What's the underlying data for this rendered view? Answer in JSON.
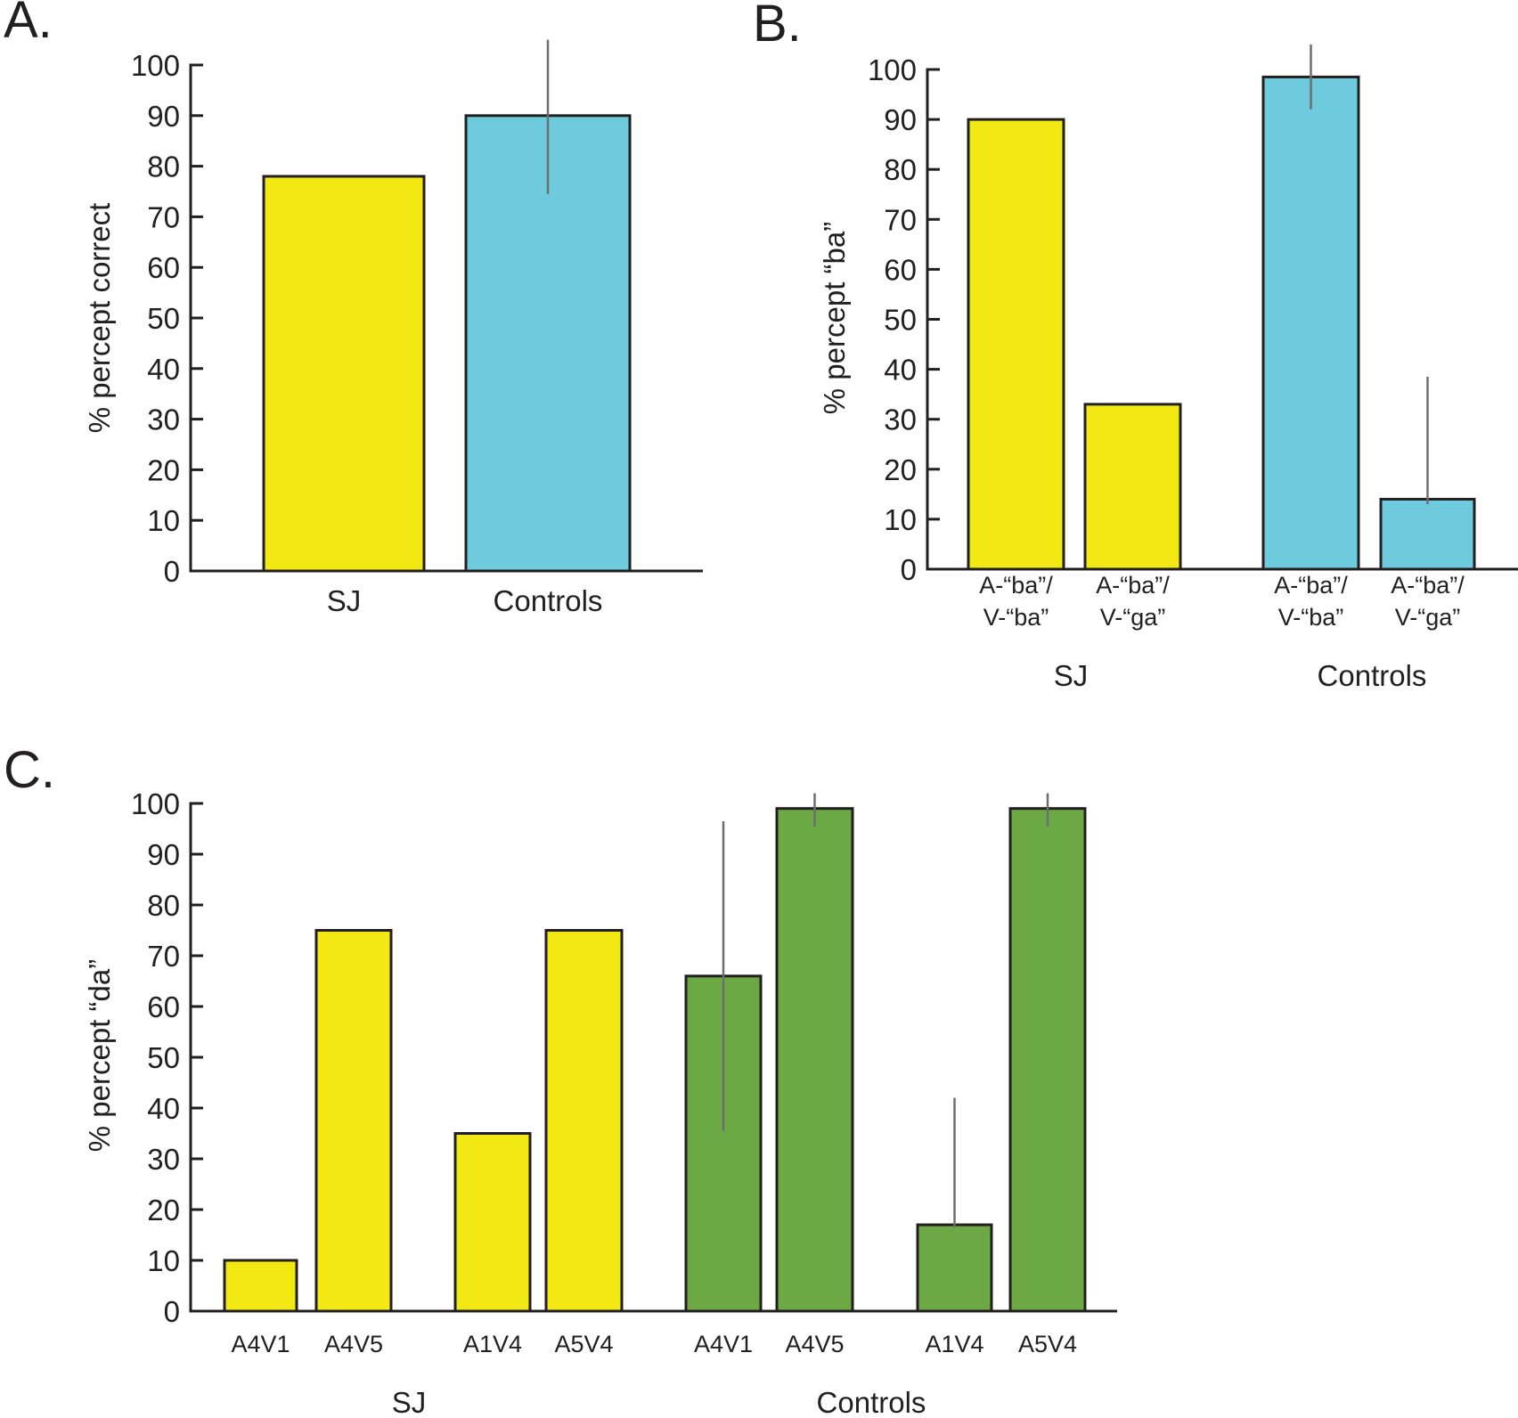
{
  "chart_data": [
    {
      "panel": "A.",
      "type": "bar",
      "title": "",
      "xlabel": "",
      "ylabel": "% percept correct",
      "ylim": [
        0,
        100
      ],
      "yticks": [
        0,
        10,
        20,
        30,
        40,
        50,
        60,
        70,
        80,
        90,
        100
      ],
      "grid": false,
      "legend": "none",
      "categories": [
        "SJ",
        "Controls"
      ],
      "bars": [
        {
          "label": "SJ",
          "group": "",
          "value": 78,
          "color": "#f2e814",
          "error": null
        },
        {
          "label": "Controls",
          "group": "",
          "value": 90,
          "color": "#6ecbdd",
          "error": {
            "upper": 105,
            "lower": 74.5
          }
        }
      ],
      "groups": []
    },
    {
      "panel": "B.",
      "type": "bar",
      "title": "",
      "xlabel": "",
      "ylabel": "% percept “ba”",
      "ylim": [
        0,
        100
      ],
      "yticks": [
        0,
        10,
        20,
        30,
        40,
        50,
        60,
        70,
        80,
        90,
        100
      ],
      "grid": false,
      "legend": "none",
      "categories": [
        "A-“ba”/ V-“ba”",
        "A-“ba”/ V-“ga”",
        "A-“ba”/ V-“ba”",
        "A-“ba”/ V-“ga”"
      ],
      "bars": [
        {
          "label_line1": "A-“ba”/",
          "label_line2": "V-“ba”",
          "group": "SJ",
          "value": 90,
          "color": "#f2e814",
          "error": null
        },
        {
          "label_line1": "A-“ba”/",
          "label_line2": "V-“ga”",
          "group": "SJ",
          "value": 33,
          "color": "#f2e814",
          "error": null
        },
        {
          "label_line1": "A-“ba”/",
          "label_line2": "V-“ba”",
          "group": "Controls",
          "value": 98.5,
          "color": "#6ecbdd",
          "error": {
            "upper": 105,
            "lower": 92
          }
        },
        {
          "label_line1": "A-“ba”/",
          "label_line2": "V-“ga”",
          "group": "Controls",
          "value": 14,
          "color": "#6ecbdd",
          "error": {
            "upper": 38.5,
            "lower": 13
          }
        }
      ],
      "groups": [
        "SJ",
        "Controls"
      ]
    },
    {
      "panel": "C.",
      "type": "bar",
      "title": "",
      "xlabel": "",
      "ylabel": "% percept “da”",
      "ylim": [
        0,
        100
      ],
      "yticks": [
        0,
        10,
        20,
        30,
        40,
        50,
        60,
        70,
        80,
        90,
        100
      ],
      "grid": false,
      "legend": "none",
      "categories": [
        "A4V1",
        "A4V5",
        "A1V4",
        "A5V4",
        "A4V1",
        "A4V5",
        "A1V4",
        "A5V4"
      ],
      "bars": [
        {
          "label": "A4V1",
          "group": "SJ",
          "value": 10,
          "color": "#f2e814",
          "error": null
        },
        {
          "label": "A4V5",
          "group": "SJ",
          "value": 75,
          "color": "#f2e814",
          "error": null
        },
        {
          "label": "A1V4",
          "group": "SJ",
          "value": 35,
          "color": "#f2e814",
          "error": null
        },
        {
          "label": "A5V4",
          "group": "SJ",
          "value": 75,
          "color": "#f2e814",
          "error": null
        },
        {
          "label": "A4V1",
          "group": "Controls",
          "value": 66,
          "color": "#6ca843",
          "error": {
            "upper": 96.5,
            "lower": 35.5
          }
        },
        {
          "label": "A4V5",
          "group": "Controls",
          "value": 99,
          "color": "#6ca843",
          "error": {
            "upper": 102,
            "lower": 95.5
          }
        },
        {
          "label": "A1V4",
          "group": "Controls",
          "value": 17,
          "color": "#6ca843",
          "error": {
            "upper": 42,
            "lower": 16.5
          }
        },
        {
          "label": "A5V4",
          "group": "Controls",
          "value": 99,
          "color": "#6ca843",
          "error": {
            "upper": 102,
            "lower": 95.5
          }
        }
      ],
      "groups": [
        "SJ",
        "Controls"
      ]
    }
  ]
}
